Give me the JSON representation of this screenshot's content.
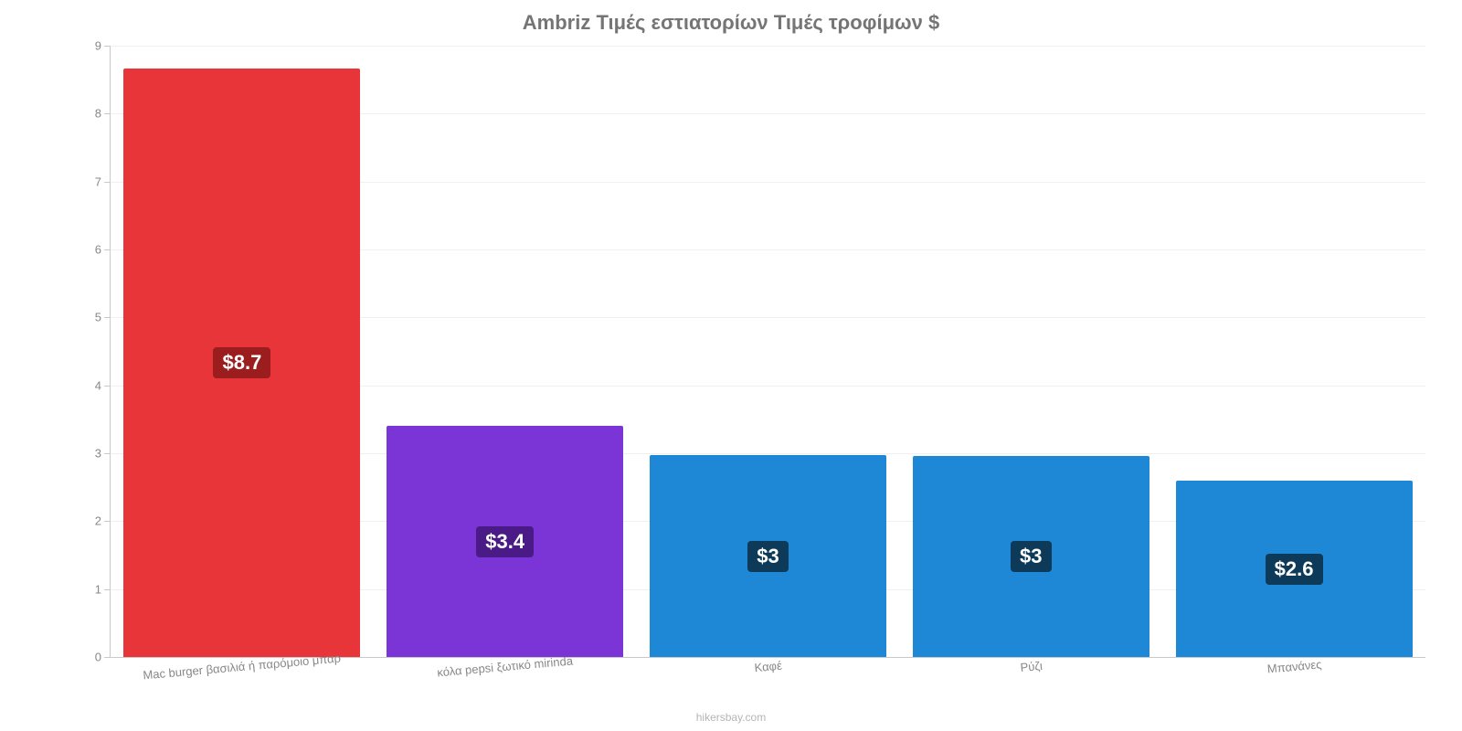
{
  "chart": {
    "type": "bar",
    "title": "Ambriz Τιμές εστιατορίων Τιμές τροφίμων $",
    "title_fontsize": 22,
    "title_color": "#757575",
    "background_color": "#ffffff",
    "grid_color": "#f0f0f0",
    "axis_color": "#c9c9c9",
    "bar_width_pct": 90,
    "y": {
      "min": 0,
      "max": 9,
      "ticks": [
        0,
        1,
        2,
        3,
        4,
        5,
        6,
        7,
        8,
        9
      ],
      "tick_labels": [
        "0",
        "1",
        "2",
        "3",
        "4",
        "5",
        "6",
        "7",
        "8",
        "9"
      ],
      "tick_fontsize": 13,
      "tick_color": "#888888"
    },
    "x": {
      "tick_fontsize": 13,
      "tick_color": "#888888",
      "label_rotation_deg": -5
    },
    "data_label_style": {
      "fontsize": 22,
      "font_weight": 600,
      "text_color": "#ffffff",
      "border_radius": 4,
      "padding_v": 4,
      "padding_h": 10
    },
    "data_label_bg_colors": [
      "#9b1d1d",
      "#4a1a87",
      "#0c3a58",
      "#0c3a58",
      "#0c3a58"
    ],
    "categories": [
      "Mac burger βασιλιά ή παρόμοιο μπαρ",
      "κόλα pepsi ξωτικό mirinda",
      "Καφέ",
      "Ρύζι",
      "Μπανάνες"
    ],
    "values": [
      8.67,
      3.4,
      2.97,
      2.96,
      2.59
    ],
    "value_labels": [
      "$8.7",
      "$3.4",
      "$3",
      "$3",
      "$2.6"
    ],
    "bar_colors": [
      "#e8353a",
      "#7b34d6",
      "#1e88d6",
      "#1e88d6",
      "#1e88d6"
    ],
    "attribution": "hikersbay.com",
    "attribution_fontsize": 12,
    "attribution_color": "#b5b5b5"
  }
}
